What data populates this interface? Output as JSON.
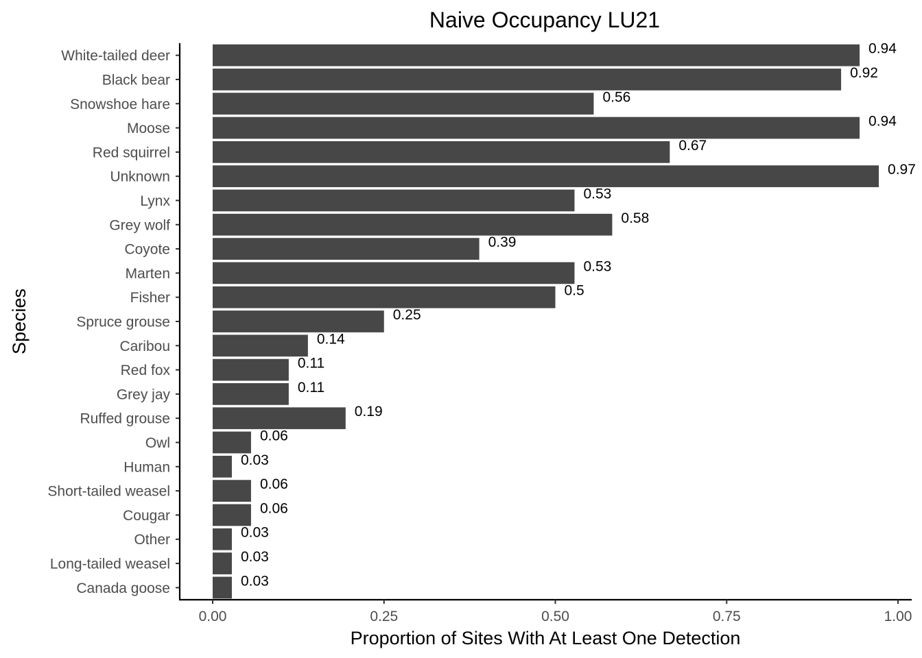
{
  "chart_data": {
    "type": "bar",
    "orientation": "horizontal",
    "title": "Naive Occupancy LU21",
    "xlabel": "Proportion of Sites With At Least One Detection",
    "ylabel": "Species",
    "xlim": [
      0,
      1
    ],
    "x_ticks": [
      0,
      0.25,
      0.5,
      0.75,
      1
    ],
    "x_tick_labels": [
      "0.00",
      "0.25",
      "0.50",
      "0.75",
      "1.00"
    ],
    "grid": false,
    "legend": "none",
    "bar_color": "#474747",
    "categories": [
      "White-tailed deer",
      "Black bear",
      "Snowshoe hare",
      "Moose",
      "Red squirrel",
      "Unknown",
      "Lynx",
      "Grey wolf",
      "Coyote",
      "Marten",
      "Fisher",
      "Spruce grouse",
      "Caribou",
      "Red fox",
      "Grey jay",
      "Ruffed grouse",
      "Owl",
      "Human",
      "Short-tailed weasel",
      "Cougar",
      "Other",
      "Long-tailed weasel",
      "Canada goose"
    ],
    "values": [
      0.944,
      0.917,
      0.556,
      0.944,
      0.667,
      0.972,
      0.528,
      0.583,
      0.389,
      0.528,
      0.5,
      0.25,
      0.139,
      0.111,
      0.111,
      0.194,
      0.056,
      0.028,
      0.056,
      0.056,
      0.028,
      0.028,
      0.028
    ],
    "value_labels": [
      "0.94",
      "0.92",
      "0.56",
      "0.94",
      "0.67",
      "0.97",
      "0.53",
      "0.58",
      "0.39",
      "0.53",
      "0.5",
      "0.25",
      "0.14",
      "0.11",
      "0.11",
      "0.19",
      "0.06",
      "0.03",
      "0.06",
      "0.06",
      "0.03",
      "0.03",
      "0.03"
    ]
  }
}
